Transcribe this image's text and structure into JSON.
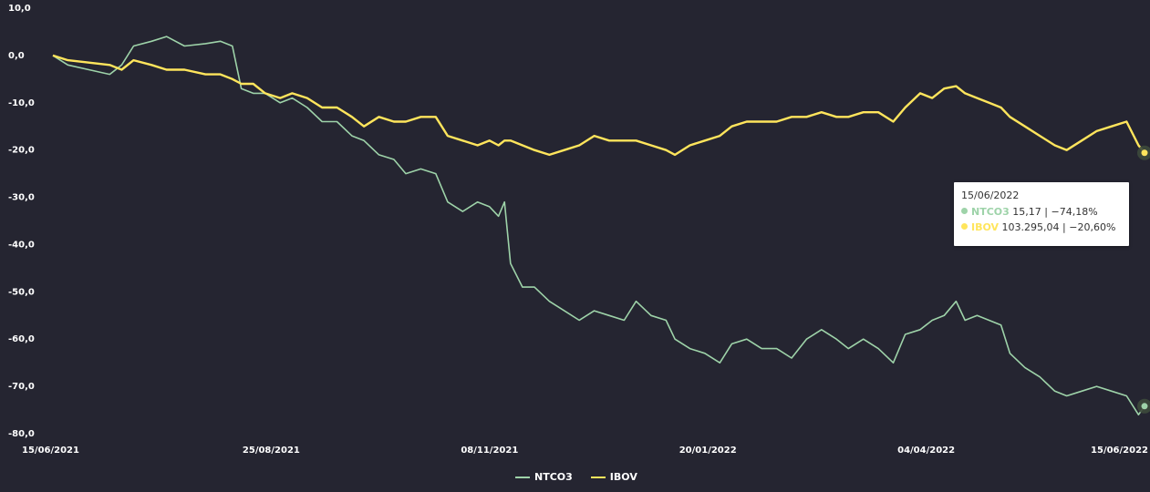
{
  "chart_data": {
    "type": "line",
    "x_ticks": [
      "15/06/2021",
      "25/08/2021",
      "08/11/2021",
      "20/01/2022",
      "04/04/2022",
      "15/06/2022"
    ],
    "y_ticks": [
      "10,0",
      "0,0",
      "-10,0",
      "-20,0",
      "-30,0",
      "-40,0",
      "-50,0",
      "-60,0",
      "-70,0",
      "-80,0"
    ],
    "ylim": [
      -80,
      10
    ],
    "x_range": [
      "2021-06-15",
      "2022-06-15"
    ],
    "grid": false,
    "legend_position": "bottom-center",
    "series": [
      {
        "name": "NTCO3",
        "color": "#9ed3a9",
        "points": [
          [
            "2021-06-15",
            0
          ],
          [
            "2021-06-20",
            -2
          ],
          [
            "2021-06-27",
            -3
          ],
          [
            "2021-07-04",
            -4
          ],
          [
            "2021-07-08",
            -2
          ],
          [
            "2021-07-12",
            2
          ],
          [
            "2021-07-18",
            3
          ],
          [
            "2021-07-23",
            4
          ],
          [
            "2021-07-29",
            2
          ],
          [
            "2021-08-05",
            2.5
          ],
          [
            "2021-08-10",
            3
          ],
          [
            "2021-08-14",
            2
          ],
          [
            "2021-08-17",
            -7
          ],
          [
            "2021-08-21",
            -8
          ],
          [
            "2021-08-25",
            -8
          ],
          [
            "2021-08-30",
            -10
          ],
          [
            "2021-09-03",
            -9
          ],
          [
            "2021-09-08",
            -11
          ],
          [
            "2021-09-13",
            -14
          ],
          [
            "2021-09-18",
            -14
          ],
          [
            "2021-09-23",
            -17
          ],
          [
            "2021-09-27",
            -18
          ],
          [
            "2021-10-02",
            -21
          ],
          [
            "2021-10-07",
            -22
          ],
          [
            "2021-10-11",
            -25
          ],
          [
            "2021-10-16",
            -24
          ],
          [
            "2021-10-21",
            -25
          ],
          [
            "2021-10-25",
            -31
          ],
          [
            "2021-10-30",
            -33
          ],
          [
            "2021-11-04",
            -31
          ],
          [
            "2021-11-08",
            -32
          ],
          [
            "2021-11-11",
            -34
          ],
          [
            "2021-11-13",
            -31
          ],
          [
            "2021-11-15",
            -44
          ],
          [
            "2021-11-19",
            -49
          ],
          [
            "2021-11-23",
            -49
          ],
          [
            "2021-11-28",
            -52
          ],
          [
            "2021-12-03",
            -54
          ],
          [
            "2021-12-08",
            -56
          ],
          [
            "2021-12-13",
            -54
          ],
          [
            "2021-12-18",
            -55
          ],
          [
            "2021-12-23",
            -56
          ],
          [
            "2021-12-27",
            -52
          ],
          [
            "2022-01-01",
            -55
          ],
          [
            "2022-01-06",
            -56
          ],
          [
            "2022-01-09",
            -60
          ],
          [
            "2022-01-14",
            -62
          ],
          [
            "2022-01-19",
            -63
          ],
          [
            "2022-01-24",
            -65
          ],
          [
            "2022-01-28",
            -61
          ],
          [
            "2022-02-02",
            -60
          ],
          [
            "2022-02-07",
            -62
          ],
          [
            "2022-02-12",
            -62
          ],
          [
            "2022-02-17",
            -64
          ],
          [
            "2022-02-22",
            -60
          ],
          [
            "2022-02-27",
            -58
          ],
          [
            "2022-03-04",
            -60
          ],
          [
            "2022-03-08",
            -62
          ],
          [
            "2022-03-13",
            -60
          ],
          [
            "2022-03-18",
            -62
          ],
          [
            "2022-03-23",
            -65
          ],
          [
            "2022-03-27",
            -59
          ],
          [
            "2022-04-01",
            -58
          ],
          [
            "2022-04-05",
            -56
          ],
          [
            "2022-04-09",
            -55
          ],
          [
            "2022-04-13",
            -52
          ],
          [
            "2022-04-16",
            -56
          ],
          [
            "2022-04-20",
            -55
          ],
          [
            "2022-04-24",
            -56
          ],
          [
            "2022-04-28",
            -57
          ],
          [
            "2022-05-01",
            -63
          ],
          [
            "2022-05-06",
            -66
          ],
          [
            "2022-05-11",
            -68
          ],
          [
            "2022-05-16",
            -71
          ],
          [
            "2022-05-20",
            -72
          ],
          [
            "2022-05-25",
            -71
          ],
          [
            "2022-05-30",
            -70
          ],
          [
            "2022-06-04",
            -71
          ],
          [
            "2022-06-09",
            -72
          ],
          [
            "2022-06-13",
            -76
          ],
          [
            "2022-06-15",
            -74.18
          ]
        ]
      },
      {
        "name": "IBOV",
        "color": "#ffe55c",
        "points": [
          [
            "2021-06-15",
            0
          ],
          [
            "2021-06-20",
            -1
          ],
          [
            "2021-06-27",
            -1.5
          ],
          [
            "2021-07-04",
            -2
          ],
          [
            "2021-07-08",
            -3
          ],
          [
            "2021-07-12",
            -1
          ],
          [
            "2021-07-18",
            -2
          ],
          [
            "2021-07-23",
            -3
          ],
          [
            "2021-07-29",
            -3
          ],
          [
            "2021-08-05",
            -4
          ],
          [
            "2021-08-10",
            -4
          ],
          [
            "2021-08-14",
            -5
          ],
          [
            "2021-08-17",
            -6
          ],
          [
            "2021-08-21",
            -6
          ],
          [
            "2021-08-25",
            -8
          ],
          [
            "2021-08-30",
            -9
          ],
          [
            "2021-09-03",
            -8
          ],
          [
            "2021-09-08",
            -9
          ],
          [
            "2021-09-13",
            -11
          ],
          [
            "2021-09-18",
            -11
          ],
          [
            "2021-09-23",
            -13
          ],
          [
            "2021-09-27",
            -15
          ],
          [
            "2021-10-02",
            -13
          ],
          [
            "2021-10-07",
            -14
          ],
          [
            "2021-10-11",
            -14
          ],
          [
            "2021-10-16",
            -13
          ],
          [
            "2021-10-21",
            -13
          ],
          [
            "2021-10-25",
            -17
          ],
          [
            "2021-10-30",
            -18
          ],
          [
            "2021-11-04",
            -19
          ],
          [
            "2021-11-08",
            -18
          ],
          [
            "2021-11-11",
            -19
          ],
          [
            "2021-11-13",
            -18
          ],
          [
            "2021-11-15",
            -18
          ],
          [
            "2021-11-19",
            -19
          ],
          [
            "2021-11-23",
            -20
          ],
          [
            "2021-11-28",
            -21
          ],
          [
            "2021-12-03",
            -20
          ],
          [
            "2021-12-08",
            -19
          ],
          [
            "2021-12-13",
            -17
          ],
          [
            "2021-12-18",
            -18
          ],
          [
            "2021-12-23",
            -18
          ],
          [
            "2021-12-27",
            -18
          ],
          [
            "2022-01-01",
            -19
          ],
          [
            "2022-01-06",
            -20
          ],
          [
            "2022-01-09",
            -21
          ],
          [
            "2022-01-14",
            -19
          ],
          [
            "2022-01-19",
            -18
          ],
          [
            "2022-01-24",
            -17
          ],
          [
            "2022-01-28",
            -15
          ],
          [
            "2022-02-02",
            -14
          ],
          [
            "2022-02-07",
            -14
          ],
          [
            "2022-02-12",
            -14
          ],
          [
            "2022-02-17",
            -13
          ],
          [
            "2022-02-22",
            -13
          ],
          [
            "2022-02-27",
            -12
          ],
          [
            "2022-03-04",
            -13
          ],
          [
            "2022-03-08",
            -13
          ],
          [
            "2022-03-13",
            -12
          ],
          [
            "2022-03-18",
            -12
          ],
          [
            "2022-03-23",
            -14
          ],
          [
            "2022-03-27",
            -11
          ],
          [
            "2022-04-01",
            -8
          ],
          [
            "2022-04-05",
            -9
          ],
          [
            "2022-04-09",
            -7
          ],
          [
            "2022-04-13",
            -6.5
          ],
          [
            "2022-04-16",
            -8
          ],
          [
            "2022-04-20",
            -9
          ],
          [
            "2022-04-24",
            -10
          ],
          [
            "2022-04-28",
            -11
          ],
          [
            "2022-05-01",
            -13
          ],
          [
            "2022-05-06",
            -15
          ],
          [
            "2022-05-11",
            -17
          ],
          [
            "2022-05-16",
            -19
          ],
          [
            "2022-05-20",
            -20
          ],
          [
            "2022-05-25",
            -18
          ],
          [
            "2022-05-30",
            -16
          ],
          [
            "2022-06-04",
            -15
          ],
          [
            "2022-06-09",
            -14
          ],
          [
            "2022-06-13",
            -19
          ],
          [
            "2022-06-15",
            -20.6
          ]
        ]
      }
    ]
  },
  "tooltip": {
    "date": "15/06/2022",
    "rows": [
      {
        "name": "NTCO3",
        "value": "15,17",
        "change": "−74,18%",
        "color": "#9ed3a9"
      },
      {
        "name": "IBOV",
        "value": "103.295,04",
        "change": "−20,60%",
        "color": "#ffe55c"
      }
    ],
    "separator": "|"
  },
  "legend": {
    "items": [
      {
        "label": "NTCO3",
        "color": "#9ed3a9"
      },
      {
        "label": "IBOV",
        "color": "#ffe55c"
      }
    ]
  }
}
